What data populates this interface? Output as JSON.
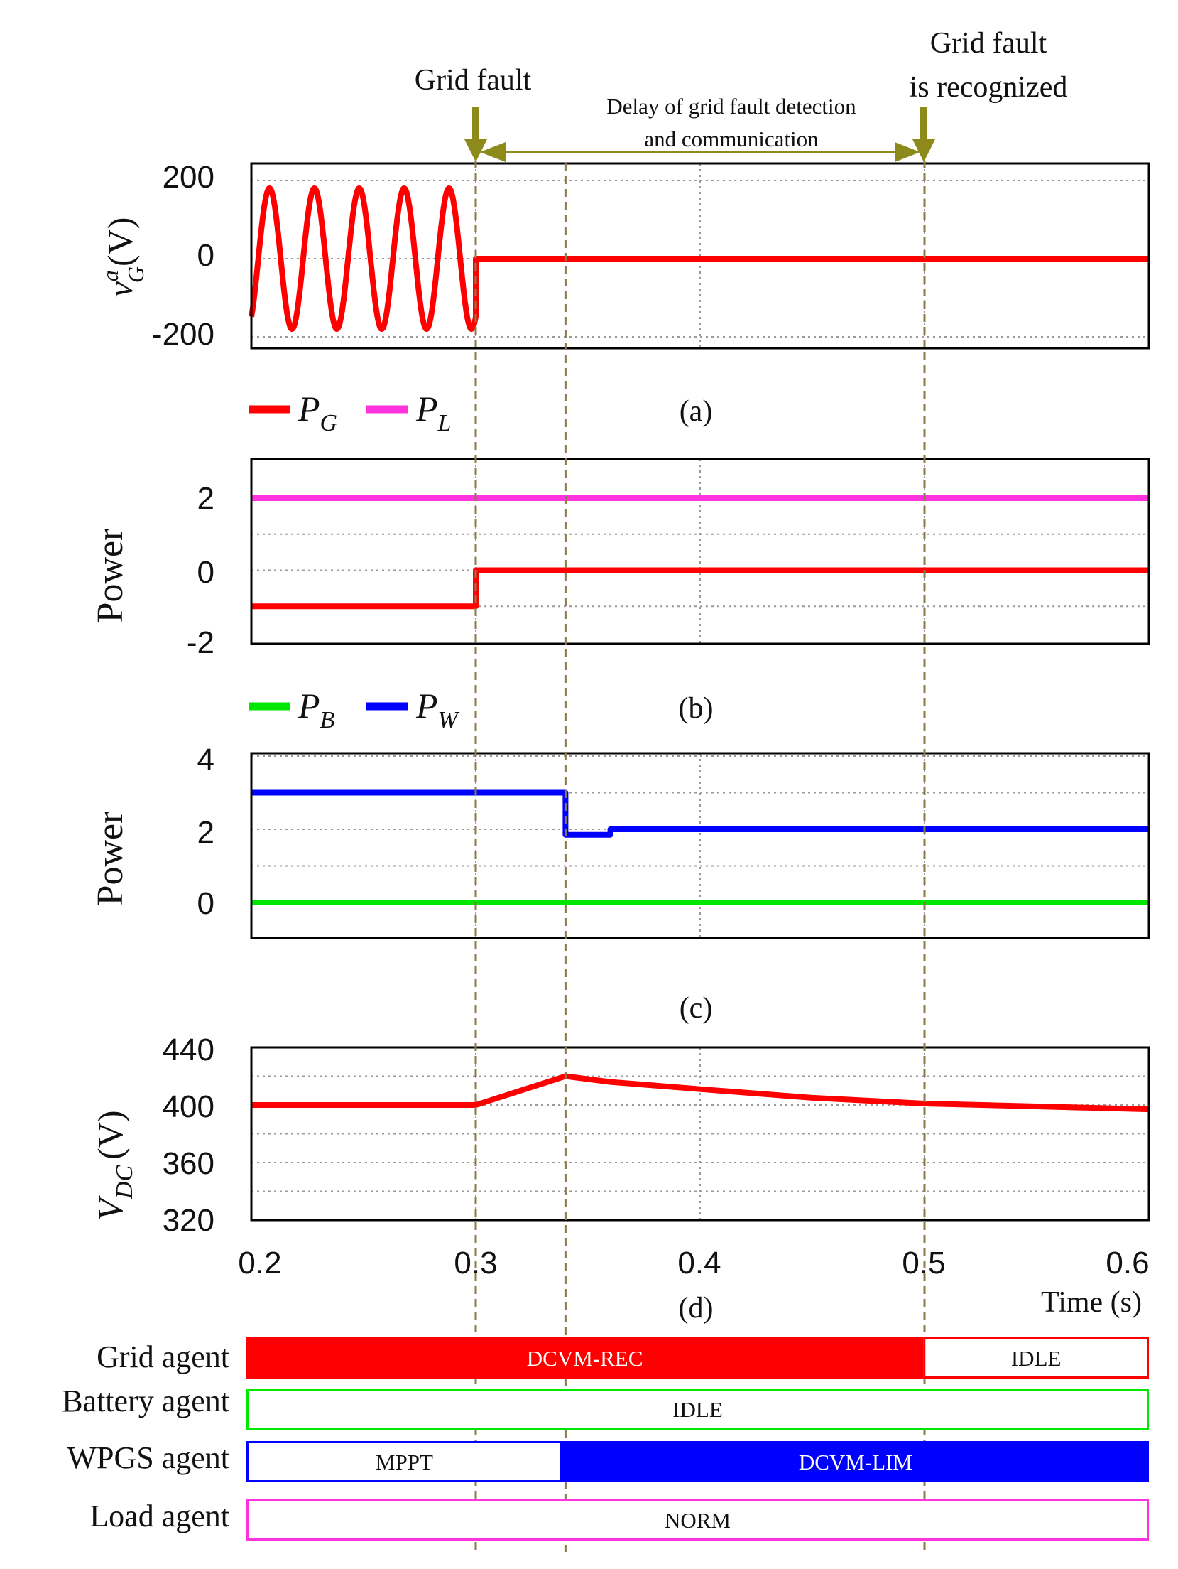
{
  "annotations": {
    "grid_fault": "Grid fault",
    "recognized_line1": "Grid fault",
    "recognized_line2": "is recognized",
    "delay_line1": "Delay of grid fault detection",
    "delay_line2": "and communication"
  },
  "chart_data": [
    {
      "id": "a",
      "type": "line",
      "caption": "(a)",
      "ylabel_main": "v",
      "ylabel_sup": "a",
      "ylabel_sub": "G",
      "ylabel_unit": "(V)",
      "x_range": [
        0.2,
        0.6
      ],
      "ylim": [
        -230,
        230
      ],
      "yticks": [
        200,
        0,
        -200
      ],
      "ytick_labels": [
        "200",
        "0",
        "-200"
      ],
      "grid": true,
      "series": [
        {
          "name": "v_G^a",
          "color": "#ff0000",
          "description": "sinusoid 180 V peak, 50 Hz, from 0.2 s until grid fault at 0.3 s, then 0 V",
          "amplitude": 180,
          "frequency_hz": 50,
          "fault_time": 0.3,
          "value_after_fault": 0
        }
      ]
    },
    {
      "id": "b",
      "type": "line",
      "caption": "(b)",
      "ylabel": "Power",
      "x_range": [
        0.2,
        0.6
      ],
      "ylim": [
        -2,
        3
      ],
      "yticks": [
        2,
        0,
        -2
      ],
      "ytick_labels": [
        "2",
        "0",
        "-2"
      ],
      "grid": true,
      "legend": [
        {
          "main": "P",
          "sub": "G",
          "color": "#ff0000"
        },
        {
          "main": "P",
          "sub": "L",
          "color": "#ff33dd"
        }
      ],
      "series": [
        {
          "name": "P_G",
          "color": "#ff0000",
          "x": [
            0.2,
            0.3,
            0.3,
            0.6
          ],
          "y": [
            -1,
            -1,
            0,
            0
          ]
        },
        {
          "name": "P_L",
          "color": "#ff33dd",
          "x": [
            0.2,
            0.6
          ],
          "y": [
            2,
            2
          ]
        }
      ]
    },
    {
      "id": "c",
      "type": "line",
      "caption": "(c)",
      "ylabel": "Power",
      "x_range": [
        0.2,
        0.6
      ],
      "ylim": [
        -1,
        4
      ],
      "yticks": [
        4,
        2,
        0
      ],
      "ytick_labels": [
        "4",
        "2",
        "0"
      ],
      "grid": true,
      "legend": [
        {
          "main": "P",
          "sub": "B",
          "color": "#00e600"
        },
        {
          "main": "P",
          "sub": "W",
          "color": "#0000ff"
        }
      ],
      "series": [
        {
          "name": "P_B",
          "color": "#00e600",
          "x": [
            0.2,
            0.6
          ],
          "y": [
            0,
            0
          ]
        },
        {
          "name": "P_W",
          "color": "#0000ff",
          "x": [
            0.2,
            0.34,
            0.34,
            0.36,
            0.36,
            0.6
          ],
          "y": [
            3.0,
            3.0,
            1.85,
            1.85,
            2.0,
            2.0
          ]
        }
      ]
    },
    {
      "id": "d",
      "type": "line",
      "caption": "(d)",
      "ylabel_main": "V",
      "ylabel_sub": "DC",
      "ylabel_unit": "(V)",
      "x_range": [
        0.2,
        0.6
      ],
      "xticks": [
        0.2,
        0.3,
        0.4,
        0.5,
        0.6
      ],
      "xtick_labels": [
        "0.2",
        "0.3",
        "0.4",
        "0.5",
        "0.6"
      ],
      "xlabel": "Time (s)",
      "ylim": [
        320,
        440
      ],
      "yticks": [
        440,
        400,
        360,
        320
      ],
      "ytick_labels": [
        "440",
        "400",
        "360",
        "320"
      ],
      "grid": true,
      "series": [
        {
          "name": "V_DC",
          "color": "#ff0000",
          "x": [
            0.2,
            0.3,
            0.34,
            0.36,
            0.4,
            0.45,
            0.5,
            0.55,
            0.6
          ],
          "y": [
            400,
            400,
            420,
            416,
            411,
            405,
            401,
            399,
            397
          ]
        }
      ]
    }
  ],
  "markers": {
    "fault_time": 0.3,
    "detection_time": 0.34,
    "recognized_time": 0.5
  },
  "agents": [
    {
      "label": "Grid agent",
      "color": "#ff0000",
      "segments": [
        {
          "start": 0.2,
          "end": 0.5,
          "label": "DCVM-REC",
          "filled": true
        },
        {
          "start": 0.5,
          "end": 0.6,
          "label": "IDLE",
          "filled": false
        }
      ]
    },
    {
      "label": "Battery agent",
      "color": "#00e600",
      "segments": [
        {
          "start": 0.2,
          "end": 0.6,
          "label": "IDLE",
          "filled": false
        }
      ]
    },
    {
      "label": "WPGS agent",
      "color": "#0000ff",
      "segments": [
        {
          "start": 0.2,
          "end": 0.34,
          "label": "MPPT",
          "filled": false
        },
        {
          "start": 0.34,
          "end": 0.6,
          "label": "DCVM-LIM",
          "filled": true
        }
      ]
    },
    {
      "label": "Load agent",
      "color": "#ff33dd",
      "segments": [
        {
          "start": 0.2,
          "end": 0.6,
          "label": "NORM",
          "filled": false
        }
      ]
    }
  ]
}
